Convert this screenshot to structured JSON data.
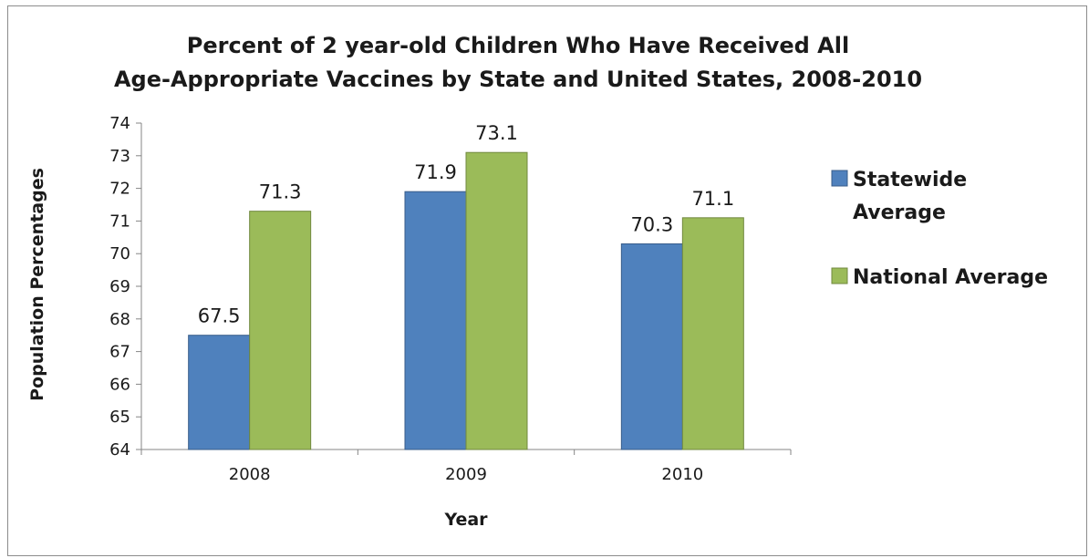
{
  "chart_data": {
    "type": "bar",
    "title_lines": [
      "Percent of 2 year-old Children Who Have Received All",
      "Age-Appropriate Vaccines by State and United States, 2008-2010"
    ],
    "xlabel": "Year",
    "ylabel": "Population Percentages",
    "categories": [
      "2008",
      "2009",
      "2010"
    ],
    "ylim": [
      64,
      74
    ],
    "ytick_step": 1,
    "grid": false,
    "legend_position": "right",
    "series": [
      {
        "name": "Statewide Average",
        "legend_lines": [
          "Statewide",
          "Average"
        ],
        "values": [
          67.5,
          71.9,
          70.3
        ],
        "labels": [
          "67.5",
          "71.9",
          "70.3"
        ],
        "color": "#4f81bd",
        "stroke": "#385d8a"
      },
      {
        "name": "National Average",
        "legend_lines": [
          "National Average"
        ],
        "values": [
          71.3,
          73.1,
          71.1
        ],
        "labels": [
          "71.3",
          "73.1",
          "71.1"
        ],
        "color": "#9bbb59",
        "stroke": "#71893f"
      }
    ]
  }
}
